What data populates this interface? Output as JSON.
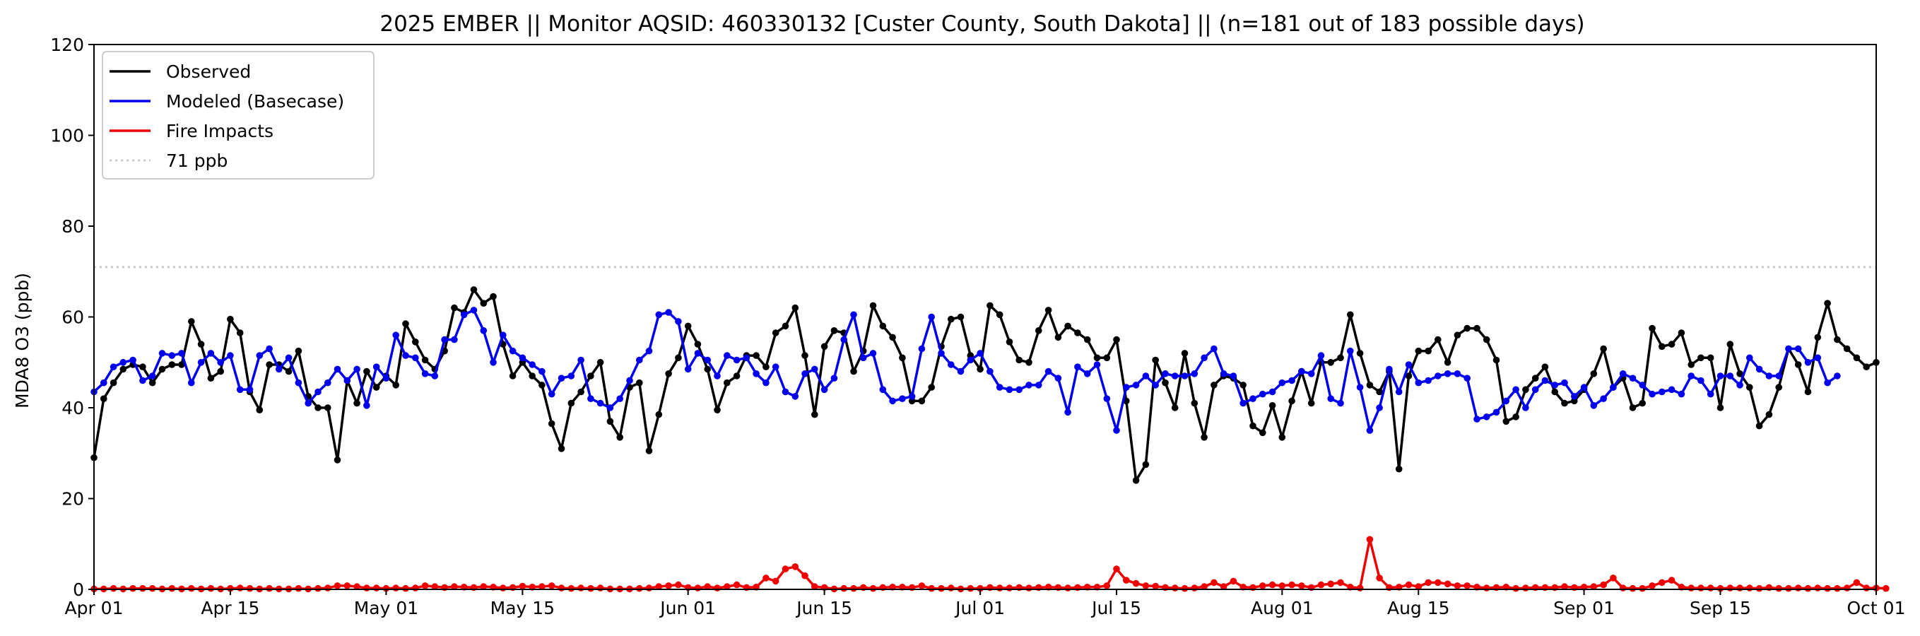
{
  "chart_data": {
    "type": "line",
    "title": "2025 EMBER || Monitor AQSID: 460330132 [Custer County, South Dakota] || (n=181 out of 183 possible days)",
    "xlabel": "",
    "ylabel": "MDA8 O3 (ppb)",
    "xlim": [
      "2025-04-01",
      "2025-10-01"
    ],
    "ylim": [
      0,
      120
    ],
    "x_ticks": [
      "Apr 01",
      "Apr 15",
      "May 01",
      "May 15",
      "Jun 01",
      "Jun 15",
      "Jul 01",
      "Jul 15",
      "Aug 01",
      "Aug 15",
      "Sep 01",
      "Sep 15",
      "Oct 01"
    ],
    "y_ticks": [
      0,
      20,
      40,
      60,
      80,
      100,
      120
    ],
    "grid": false,
    "legend_position": "top-left",
    "reference_line": {
      "name": "71 ppb",
      "value": 71,
      "color": "#cccccc",
      "style": "dotted"
    },
    "start_date": "2025-04-01",
    "series": [
      {
        "name": "Observed",
        "color": "#000000",
        "values": [
          29.0,
          42.0,
          45.5,
          48.5,
          49.5,
          49.0,
          45.5,
          48.5,
          49.5,
          49.5,
          59.0,
          54.0,
          46.5,
          48.0,
          59.5,
          56.5,
          43.5,
          39.5,
          49.5,
          49.5,
          48.0,
          52.5,
          42.5,
          40.0,
          40.0,
          28.5,
          46.0,
          41.0,
          48.0,
          44.5,
          47.0,
          45.0,
          58.5,
          54.5,
          50.5,
          48.5,
          52.5,
          62.0,
          61.0,
          66.0,
          63.0,
          64.5,
          54.0,
          47.0,
          50.0,
          47.0,
          45.0,
          36.5,
          31.0,
          41.0,
          43.5,
          47.0,
          50.0,
          37.0,
          33.5,
          44.5,
          45.5,
          30.5,
          38.5,
          47.5,
          51.0,
          58.0,
          54.0,
          48.5,
          39.5,
          45.5,
          47.0,
          51.5,
          51.5,
          49.0,
          56.5,
          58.0,
          62.0,
          51.5,
          38.5,
          53.5,
          57.0,
          56.5,
          48.0,
          52.5,
          62.5,
          58.0,
          55.5,
          51.0,
          41.5,
          41.5,
          44.5,
          53.5,
          59.5,
          60.0,
          51.5,
          48.5,
          62.5,
          60.5,
          54.5,
          50.5,
          50.0,
          57.0,
          61.5,
          55.5,
          58.0,
          56.5,
          55.0,
          51.0,
          51.0,
          55.0,
          41.5,
          24.0,
          27.5,
          50.5,
          45.5,
          40.0,
          52.0,
          41.0,
          33.5,
          45.0,
          47.0,
          46.5,
          45.0,
          36.0,
          34.5,
          40.5,
          33.5,
          41.5,
          48.0,
          41.0,
          50.0,
          50.0,
          51.0,
          60.5,
          52.0,
          45.0,
          43.5,
          48.0,
          26.5,
          47.0,
          52.5,
          52.5,
          55.0,
          50.0,
          56.0,
          57.5,
          57.5,
          55.0,
          50.5,
          37.0,
          38.0,
          44.0,
          46.5,
          49.0,
          43.5,
          41.0,
          41.5,
          44.0,
          47.5,
          53.0,
          44.5,
          46.5,
          40.0,
          41.0,
          57.5,
          53.5,
          54.0,
          56.5,
          49.5,
          51.0,
          51.0,
          40.0,
          54.0,
          47.5,
          44.5,
          36.0,
          38.5,
          44.5,
          53.0,
          49.5,
          43.5,
          55.5,
          63.0,
          55.0,
          53.0,
          51.0,
          49.0,
          50.0
        ]
      },
      {
        "name": "Modeled (Basecase)",
        "color": "#0000ee",
        "values": [
          43.5,
          45.5,
          49.0,
          50.0,
          50.5,
          46.0,
          47.0,
          52.0,
          51.5,
          52.0,
          45.5,
          50.0,
          52.0,
          50.0,
          51.5,
          44.0,
          44.0,
          51.5,
          53.0,
          48.5,
          51.0,
          45.5,
          41.0,
          43.5,
          45.5,
          48.5,
          46.0,
          48.5,
          40.5,
          49.0,
          46.5,
          56.0,
          51.5,
          51.0,
          47.5,
          47.0,
          55.0,
          55.0,
          60.5,
          61.5,
          57.0,
          50.0,
          56.0,
          52.5,
          51.0,
          49.5,
          48.0,
          43.0,
          46.5,
          47.0,
          50.5,
          42.0,
          41.0,
          40.0,
          42.0,
          46.0,
          50.5,
          52.5,
          60.5,
          61.0,
          59.0,
          48.5,
          52.0,
          50.5,
          47.0,
          51.5,
          50.5,
          51.0,
          47.5,
          45.5,
          49.0,
          43.5,
          42.5,
          47.5,
          48.5,
          44.0,
          46.5,
          55.0,
          60.5,
          51.0,
          52.0,
          44.0,
          41.5,
          42.0,
          42.5,
          53.0,
          60.0,
          52.0,
          49.5,
          48.0,
          50.5,
          52.0,
          48.0,
          44.5,
          44.0,
          44.0,
          45.0,
          45.0,
          48.0,
          46.5,
          39.0,
          49.0,
          47.5,
          49.5,
          42.0,
          35.0,
          44.5,
          45.0,
          47.0,
          45.0,
          47.5,
          47.0,
          47.0,
          47.5,
          51.0,
          53.0,
          47.5,
          47.0,
          41.0,
          42.0,
          43.0,
          43.5,
          45.5,
          46.0,
          48.0,
          47.5,
          51.5,
          42.0,
          41.0,
          52.5,
          44.5,
          35.0,
          40.0,
          48.5,
          43.5,
          49.5,
          45.5,
          46.0,
          47.0,
          47.5,
          47.5,
          46.5,
          37.5,
          38.0,
          39.0,
          41.5,
          44.0,
          40.0,
          44.0,
          46.0,
          45.0,
          45.5,
          42.5,
          44.5,
          40.5,
          42.0,
          44.5,
          47.5,
          46.5,
          45.0,
          43.0,
          43.5,
          44.0,
          43.0,
          47.0,
          46.0,
          43.0,
          47.0,
          47.0,
          45.0,
          51.0,
          48.5,
          47.0,
          47.0,
          53.0,
          53.0,
          50.0,
          51.0,
          45.5,
          47.0
        ]
      },
      {
        "name": "Fire Impacts",
        "color": "#ee0000",
        "values": [
          0.1,
          0.1,
          0.2,
          0.1,
          0.2,
          0.2,
          0.2,
          0.1,
          0.2,
          0.1,
          0.2,
          0.1,
          0.2,
          0.1,
          0.2,
          0.3,
          0.2,
          0.1,
          0.2,
          0.1,
          0.1,
          0.2,
          0.1,
          0.2,
          0.3,
          0.8,
          0.8,
          0.6,
          0.3,
          0.3,
          0.2,
          0.3,
          0.2,
          0.3,
          0.8,
          0.6,
          0.4,
          0.6,
          0.5,
          0.4,
          0.6,
          0.5,
          0.3,
          0.4,
          0.7,
          0.5,
          0.6,
          0.8,
          0.3,
          0.2,
          0.3,
          0.2,
          0.3,
          0.1,
          0.1,
          0.1,
          0.2,
          0.3,
          0.6,
          0.8,
          1.0,
          0.4,
          0.3,
          0.6,
          0.3,
          0.6,
          1.0,
          0.4,
          0.5,
          2.5,
          1.8,
          4.5,
          5.0,
          3.0,
          0.6,
          0.4,
          0.1,
          0.2,
          0.2,
          0.4,
          0.2,
          0.4,
          0.5,
          0.5,
          0.4,
          0.8,
          0.2,
          0.2,
          0.3,
          0.1,
          0.2,
          0.2,
          0.4,
          0.3,
          0.3,
          0.4,
          0.3,
          0.4,
          0.5,
          0.4,
          0.3,
          0.4,
          0.5,
          0.5,
          0.8,
          4.5,
          2.0,
          1.3,
          0.8,
          0.7,
          0.4,
          0.3,
          0.2,
          0.3,
          0.6,
          1.5,
          0.6,
          1.8,
          0.5,
          0.4,
          0.8,
          1.0,
          0.8,
          1.0,
          0.8,
          0.4,
          1.0,
          1.2,
          1.5,
          0.5,
          0.3,
          11.0,
          2.5,
          0.4,
          0.5,
          1.0,
          0.6,
          1.5,
          1.5,
          1.2,
          0.8,
          0.8,
          0.5,
          0.3,
          0.4,
          0.5,
          0.2,
          0.3,
          0.4,
          0.4,
          0.4,
          0.6,
          0.4,
          0.5,
          0.6,
          1.0,
          2.5,
          0.3,
          0.2,
          0.2,
          0.8,
          1.5,
          2.0,
          0.5,
          0.3,
          0.3,
          0.3,
          0.2,
          0.3,
          0.3,
          0.3,
          0.2,
          0.4,
          0.2,
          0.2,
          0.3,
          0.2,
          0.3,
          0.2,
          0.2,
          0.3,
          1.5,
          0.3,
          0.3,
          0.2
        ]
      }
    ]
  }
}
